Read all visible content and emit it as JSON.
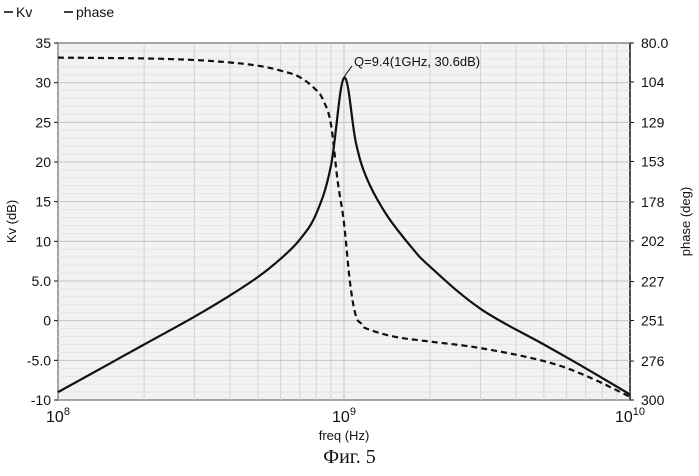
{
  "legend": [
    {
      "label": "Kv",
      "dash": "solid"
    },
    {
      "label": "phase",
      "dash": "solid"
    }
  ],
  "caption": "Фиг. 5",
  "chart_data": {
    "type": "line",
    "xlabel": "freq (Hz)",
    "x_scale": "log",
    "xlim": [
      100000000,
      10000000000
    ],
    "x_ticks": [
      {
        "value": 100000000,
        "base": "10",
        "exp": "8"
      },
      {
        "value": 1000000000,
        "base": "10",
        "exp": "9"
      },
      {
        "value": 10000000000,
        "base": "10",
        "exp": "10"
      }
    ],
    "y_left": {
      "label": "Kv (dB)",
      "range": [
        -10,
        35
      ],
      "ticks": [
        35,
        30,
        25,
        20,
        15,
        10,
        5.0,
        0,
        -5.0,
        -10
      ],
      "tick_labels": [
        "35",
        "30",
        "25",
        "20",
        "15",
        "10",
        "5.0",
        "0",
        "-5.0",
        "-10"
      ]
    },
    "y_right": {
      "label": "phase (deg)",
      "range": [
        80.0,
        300
      ],
      "inverted": true,
      "ticks": [
        80.0,
        104,
        129,
        153,
        178,
        202,
        227,
        251,
        276,
        300
      ],
      "tick_labels": [
        "80.0",
        "104",
        "129",
        "153",
        "178",
        "202",
        "227",
        "251",
        "276",
        "300"
      ]
    },
    "grid": true,
    "legend_position": "top-left",
    "series": [
      {
        "name": "Kv",
        "axis": "left",
        "style": "solid",
        "color": "#111111",
        "x": [
          100000000,
          150000000,
          200000000,
          300000000,
          400000000,
          500000000,
          600000000,
          700000000,
          800000000,
          900000000,
          1000000000,
          1100000000,
          1200000000,
          1400000000,
          1700000000,
          2000000000,
          3000000000,
          5000000000,
          7000000000,
          10000000000
        ],
        "y": [
          -9.0,
          -5.5,
          -3.0,
          0.5,
          3.2,
          5.5,
          7.8,
          10.2,
          13.5,
          19.5,
          30.6,
          22.5,
          18.0,
          13.5,
          9.5,
          6.8,
          1.5,
          -3.0,
          -6.0,
          -9.3
        ]
      },
      {
        "name": "phase",
        "axis": "right",
        "style": "dashed",
        "color": "#111111",
        "x": [
          100000000,
          200000000,
          300000000,
          400000000,
          500000000,
          600000000,
          700000000,
          800000000,
          850000000,
          900000000,
          950000000,
          1000000000,
          1050000000,
          1100000000,
          1150000000,
          1200000000,
          1500000000,
          2000000000,
          3000000000,
          5000000000,
          7000000000,
          10000000000
        ],
        "y": [
          89,
          89.5,
          90.5,
          92,
          94,
          97,
          101,
          109,
          116,
          130,
          165,
          191,
          228,
          248,
          253,
          256,
          261,
          264,
          268,
          276,
          285,
          298
        ]
      }
    ],
    "annotation": {
      "text": "Q=9.4(1GHz, 30.6dB)",
      "x": 1000000000,
      "y": 30.6
    }
  }
}
